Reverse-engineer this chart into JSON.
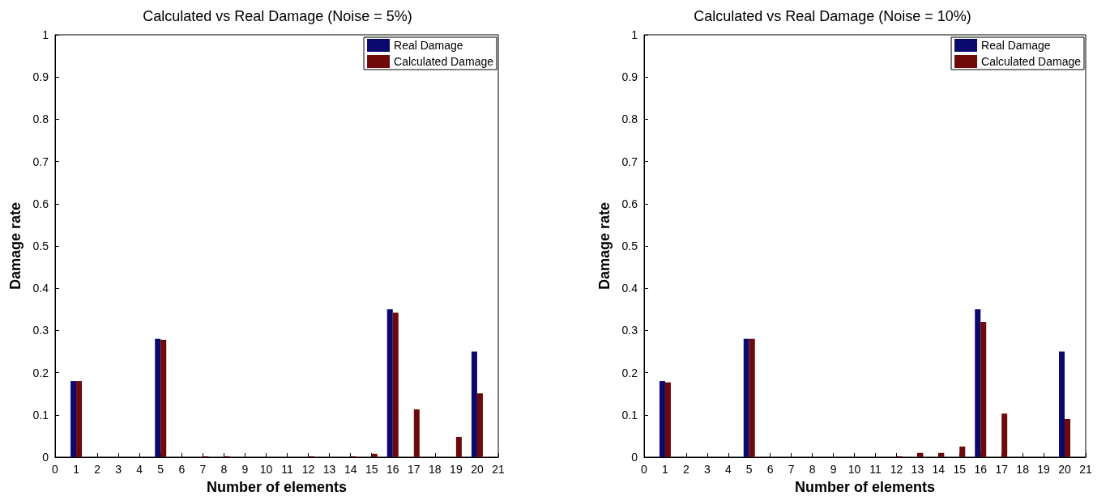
{
  "chart_data": [
    {
      "type": "bar",
      "title": "Calculated vs Real Damage (Noise = 5%)",
      "xlabel": "Number of elements",
      "ylabel": "Damage rate",
      "x": [
        1,
        2,
        3,
        4,
        5,
        6,
        7,
        8,
        9,
        10,
        11,
        12,
        13,
        14,
        15,
        16,
        17,
        18,
        19,
        20
      ],
      "series": [
        {
          "name": "Real Damage",
          "color": "#0a0a6e",
          "values": [
            0.18,
            0,
            0,
            0,
            0.28,
            0,
            0,
            0,
            0,
            0,
            0,
            0,
            0,
            0,
            0,
            0.35,
            0,
            0,
            0,
            0.25
          ]
        },
        {
          "name": "Calculated Damage",
          "color": "#6e0a0a",
          "values": [
            0.18,
            0,
            0,
            0,
            0.278,
            0,
            0.002,
            0.002,
            0,
            0,
            0,
            0.002,
            0,
            0.002,
            0.008,
            0.342,
            0.113,
            0,
            0.048,
            0.151
          ]
        }
      ],
      "xlim": [
        0,
        21
      ],
      "xticks": [
        0,
        1,
        2,
        3,
        4,
        5,
        6,
        7,
        8,
        9,
        10,
        11,
        12,
        13,
        14,
        15,
        16,
        17,
        18,
        19,
        20,
        21
      ],
      "ylim": [
        0,
        1
      ],
      "yticks": [
        0,
        0.1,
        0.2,
        0.3,
        0.4,
        0.5,
        0.6,
        0.7,
        0.8,
        0.9,
        1
      ],
      "grid": false,
      "legend": "top right"
    },
    {
      "type": "bar",
      "title": "Calculated vs Real Damage (Noise = 10%)",
      "xlabel": "Number of elements",
      "ylabel": "Damage rate",
      "x": [
        1,
        2,
        3,
        4,
        5,
        6,
        7,
        8,
        9,
        10,
        11,
        12,
        13,
        14,
        15,
        16,
        17,
        18,
        19,
        20
      ],
      "series": [
        {
          "name": "Real Damage",
          "color": "#0a0a6e",
          "values": [
            0.18,
            0,
            0,
            0,
            0.28,
            0,
            0,
            0,
            0,
            0,
            0,
            0,
            0,
            0,
            0,
            0.35,
            0,
            0,
            0,
            0.25
          ]
        },
        {
          "name": "Calculated Damage",
          "color": "#6e0a0a",
          "values": [
            0.177,
            0,
            0,
            0,
            0.28,
            0,
            0,
            0,
            0,
            0,
            0,
            0.002,
            0.01,
            0.01,
            0.025,
            0.32,
            0.103,
            0,
            0,
            0.09
          ]
        }
      ],
      "xlim": [
        0,
        21
      ],
      "xticks": [
        0,
        1,
        2,
        3,
        4,
        5,
        6,
        7,
        8,
        9,
        10,
        11,
        12,
        13,
        14,
        15,
        16,
        17,
        18,
        19,
        20,
        21
      ],
      "ylim": [
        0,
        1
      ],
      "yticks": [
        0,
        0.1,
        0.2,
        0.3,
        0.4,
        0.5,
        0.6,
        0.7,
        0.8,
        0.9,
        1
      ],
      "grid": false,
      "legend": "top right"
    }
  ]
}
